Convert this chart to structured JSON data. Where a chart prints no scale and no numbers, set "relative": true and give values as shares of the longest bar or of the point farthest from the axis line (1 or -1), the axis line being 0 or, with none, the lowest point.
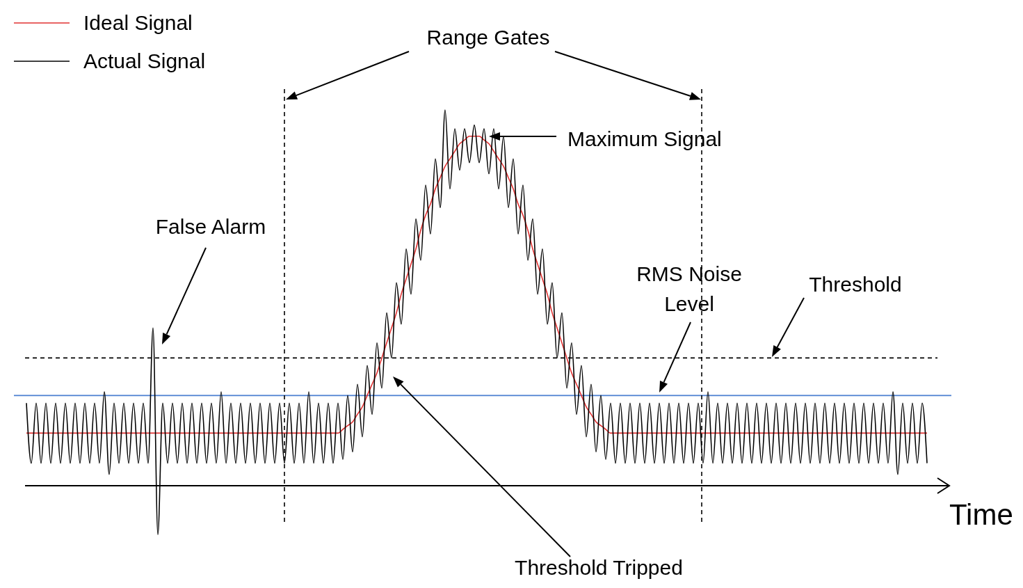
{
  "chart_data": {
    "type": "line",
    "relative": true,
    "xlabel": "Time",
    "legend": "top left",
    "categories": [
      null,
      null,
      null,
      null,
      null,
      null,
      null,
      null,
      null,
      null,
      null,
      null,
      null,
      null,
      null,
      null,
      null,
      null,
      null,
      null,
      null,
      null,
      null,
      null,
      null,
      null,
      null,
      null,
      null,
      null,
      null,
      null,
      null,
      null,
      null,
      null,
      null,
      null,
      null,
      null,
      null,
      null,
      null,
      null,
      null,
      null,
      null,
      null,
      null,
      null,
      null,
      null,
      null,
      null,
      null,
      null,
      null,
      null,
      null,
      null,
      null,
      null,
      null,
      null,
      null,
      null,
      null,
      null,
      null,
      null,
      null,
      null,
      null,
      null,
      null,
      null,
      null,
      null,
      null,
      null,
      null,
      null,
      null,
      null,
      null,
      null,
      null,
      null,
      null,
      null,
      null,
      null,
      null,
      null,
      null,
      null,
      null,
      null,
      null,
      null,
      null,
      null,
      null,
      null,
      null,
      null,
      null,
      null,
      null,
      null,
      null,
      null,
      null,
      null,
      null,
      null,
      null,
      null,
      null,
      null,
      null,
      null,
      null,
      null,
      null,
      null,
      null,
      null,
      null,
      null,
      null,
      null,
      null,
      null,
      null,
      null,
      null,
      null,
      null,
      null,
      null,
      null,
      null,
      null,
      null,
      null,
      null,
      null,
      null,
      null,
      null,
      null,
      null,
      null,
      null,
      null,
      null,
      null,
      null,
      null,
      null,
      null,
      null,
      null,
      null,
      null,
      null,
      null,
      null,
      null,
      null,
      null,
      null,
      null,
      null,
      null,
      null,
      null,
      null,
      null,
      null,
      null,
      null,
      null,
      null,
      null
    ],
    "series": [
      {
        "name": "Ideal Signal",
        "color": "#e03030",
        "values": [
          0.14,
          0.14,
          0.14,
          0.14,
          0.14,
          0.14,
          0.14,
          0.14,
          0.14,
          0.14,
          0.14,
          0.14,
          0.14,
          0.14,
          0.14,
          0.14,
          0.14,
          0.14,
          0.14,
          0.14,
          0.14,
          0.14,
          0.14,
          0.14,
          0.14,
          0.14,
          0.14,
          0.14,
          0.14,
          0.14,
          0.14,
          0.14,
          0.14,
          0.14,
          0.14,
          0.14,
          0.14,
          0.14,
          0.14,
          0.14,
          0.14,
          0.14,
          0.14,
          0.14,
          0.14,
          0.14,
          0.14,
          0.14,
          0.14,
          0.14,
          0.14,
          0.14,
          0.14,
          0.14,
          0.14,
          0.14,
          0.14,
          0.14,
          0.14,
          0.14,
          0.14,
          0.14,
          0.14,
          0.14,
          0.14,
          0.15,
          0.16,
          0.17,
          0.19,
          0.21,
          0.24,
          0.27,
          0.3,
          0.34,
          0.38,
          0.42,
          0.46,
          0.51,
          0.55,
          0.59,
          0.63,
          0.68,
          0.72,
          0.75,
          0.79,
          0.82,
          0.85,
          0.87,
          0.89,
          0.91,
          0.92,
          0.93,
          0.93,
          0.93,
          0.92,
          0.91,
          0.89,
          0.87,
          0.85,
          0.82,
          0.79,
          0.75,
          0.72,
          0.68,
          0.63,
          0.59,
          0.55,
          0.51,
          0.46,
          0.42,
          0.38,
          0.34,
          0.3,
          0.27,
          0.24,
          0.21,
          0.19,
          0.17,
          0.16,
          0.15,
          0.14,
          0.14,
          0.14,
          0.14,
          0.14,
          0.14,
          0.14,
          0.14,
          0.14,
          0.14,
          0.14,
          0.14,
          0.14,
          0.14,
          0.14,
          0.14,
          0.14,
          0.14,
          0.14,
          0.14,
          0.14,
          0.14,
          0.14,
          0.14,
          0.14,
          0.14,
          0.14,
          0.14,
          0.14,
          0.14,
          0.14,
          0.14,
          0.14,
          0.14,
          0.14,
          0.14,
          0.14,
          0.14,
          0.14,
          0.14,
          0.14,
          0.14,
          0.14,
          0.14,
          0.14,
          0.14,
          0.14,
          0.14,
          0.14,
          0.14,
          0.14,
          0.14,
          0.14,
          0.14,
          0.14,
          0.14,
          0.14,
          0.14,
          0.14,
          0.14,
          0.14,
          0.14,
          0.14,
          0.14,
          0.14,
          0.14
        ]
      },
      {
        "name": "Actual Signal",
        "color": "#000000",
        "values": [
          0.22,
          0.06,
          0.22,
          0.06,
          0.22,
          0.06,
          0.22,
          0.06,
          0.22,
          0.06,
          0.22,
          0.06,
          0.22,
          0.06,
          0.22,
          0.06,
          0.25,
          0.03,
          0.22,
          0.06,
          0.22,
          0.06,
          0.22,
          0.06,
          0.22,
          0.06,
          0.42,
          -0.13,
          0.22,
          0.06,
          0.22,
          0.06,
          0.22,
          0.06,
          0.22,
          0.06,
          0.22,
          0.06,
          0.22,
          0.06,
          0.25,
          0.06,
          0.22,
          0.06,
          0.22,
          0.06,
          0.22,
          0.06,
          0.22,
          0.06,
          0.22,
          0.06,
          0.22,
          0.06,
          0.22,
          0.06,
          0.22,
          0.06,
          0.25,
          0.06,
          0.22,
          0.06,
          0.22,
          0.06,
          0.22,
          0.07,
          0.24,
          0.09,
          0.27,
          0.13,
          0.32,
          0.19,
          0.38,
          0.26,
          0.46,
          0.34,
          0.54,
          0.43,
          0.63,
          0.51,
          0.71,
          0.6,
          0.8,
          0.67,
          0.87,
          0.74,
          1,
          0.79,
          0.95,
          0.84,
          0.95,
          0.86,
          0.96,
          0.86,
          0.95,
          0.83,
          0.95,
          0.79,
          0.93,
          0.74,
          0.87,
          0.67,
          0.8,
          0.6,
          0.71,
          0.51,
          0.63,
          0.43,
          0.54,
          0.34,
          0.46,
          0.26,
          0.38,
          0.19,
          0.32,
          0.13,
          0.27,
          0.09,
          0.24,
          0.07,
          0.22,
          0.06,
          0.22,
          0.06,
          0.22,
          0.06,
          0.22,
          0.06,
          0.22,
          0.06,
          0.22,
          0.06,
          0.22,
          0.06,
          0.22,
          0.06,
          0.22,
          0.06,
          0.22,
          0.06,
          0.25,
          0.06,
          0.22,
          0.06,
          0.22,
          0.06,
          0.22,
          0.06,
          0.22,
          0.06,
          0.22,
          0.06,
          0.22,
          0.06,
          0.22,
          0.06,
          0.22,
          0.06,
          0.22,
          0.06,
          0.22,
          0.06,
          0.22,
          0.06,
          0.22,
          0.06,
          0.22,
          0.06,
          0.22,
          0.06,
          0.22,
          0.06,
          0.22,
          0.06,
          0.22,
          0.06,
          0.22,
          0.06,
          0.25,
          0.03,
          0.22,
          0.06,
          0.22,
          0.06,
          0.22,
          0.06
        ]
      }
    ],
    "ref_lines": [
      {
        "axis": "y",
        "value": 0.34,
        "color": "#000000",
        "line_style": "dashed"
      },
      {
        "axis": "y",
        "value": 0.24,
        "color": "#4a7fd0",
        "line_style": "solid"
      }
    ],
    "annotations": [
      "Range Gates",
      "Maximum Signal",
      "False Alarm",
      "RMS Noise Level",
      "Threshold",
      "Threshold Tripped"
    ]
  }
}
